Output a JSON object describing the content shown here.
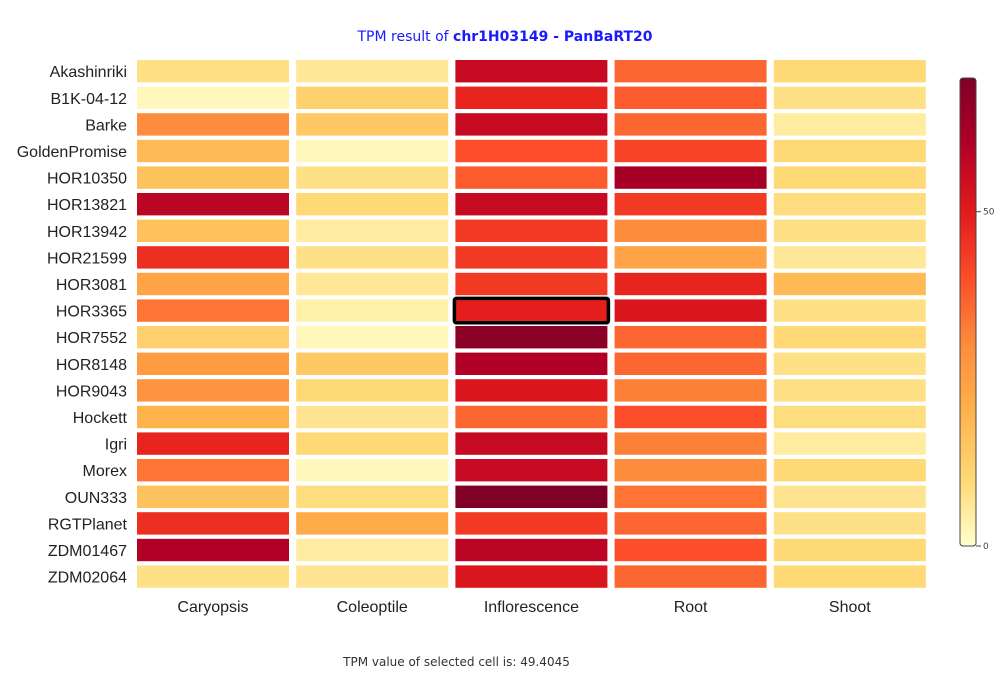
{
  "colors": {
    "title_text": "#1a1aff",
    "selected_border": "#000000"
  },
  "title": {
    "prefix": "TPM result of ",
    "gene": "chr1H03149 - PanBaRT20"
  },
  "footer": {
    "text": "TPM value of selected cell is: 49.4045"
  },
  "colorbar": {
    "tick_labels": [
      "50",
      "0"
    ],
    "scale": [
      "#FFFFCC",
      "#FED976",
      "#FEB24C",
      "#FD8D3C",
      "#FC4E2A",
      "#E31A1C",
      "#B10026",
      "#800026"
    ]
  },
  "chart_data": {
    "type": "heatmap",
    "title": "TPM result of chr1H03149 - PanBaRT20",
    "x_categories": [
      "Caryopsis",
      "Coleoptile",
      "Inflorescence",
      "Root",
      "Shoot"
    ],
    "y_categories": [
      "Akashinriki",
      "B1K-04-12",
      "Barke",
      "GoldenPromise",
      "HOR10350",
      "HOR13821",
      "HOR13942",
      "HOR21599",
      "HOR3081",
      "HOR3365",
      "HOR7552",
      "HOR8148",
      "HOR9043",
      "Hockett",
      "Igri",
      "Morex",
      "OUN333",
      "RGTPlanet",
      "ZDM01467",
      "ZDM02064"
    ],
    "values": [
      [
        8,
        6,
        56,
        36,
        10
      ],
      [
        2,
        12,
        48,
        38,
        8
      ],
      [
        30,
        14,
        56,
        36,
        5
      ],
      [
        18,
        2,
        40,
        42,
        10
      ],
      [
        16,
        8,
        38,
        62,
        10
      ],
      [
        58,
        10,
        56,
        44,
        9
      ],
      [
        16,
        5,
        44,
        30,
        8
      ],
      [
        46,
        8,
        44,
        24,
        6
      ],
      [
        24,
        6,
        44,
        48,
        18
      ],
      [
        34,
        4,
        49.4045,
        52,
        8
      ],
      [
        12,
        2,
        68,
        36,
        10
      ],
      [
        26,
        14,
        60,
        36,
        8
      ],
      [
        28,
        10,
        52,
        32,
        8
      ],
      [
        20,
        7,
        36,
        40,
        9
      ],
      [
        48,
        10,
        56,
        32,
        5
      ],
      [
        34,
        2,
        56,
        30,
        10
      ],
      [
        16,
        9,
        72,
        34,
        7
      ],
      [
        46,
        22,
        44,
        36,
        8
      ],
      [
        60,
        5,
        58,
        40,
        10
      ],
      [
        8,
        7,
        52,
        36,
        10
      ]
    ],
    "zlim": [
      0,
      70
    ],
    "colorbar_ticks": [
      0,
      50
    ],
    "selected_cell": {
      "row": "HOR3365",
      "column": "Inflorescence",
      "value": 49.4045
    },
    "legend": "right",
    "grid": false
  }
}
